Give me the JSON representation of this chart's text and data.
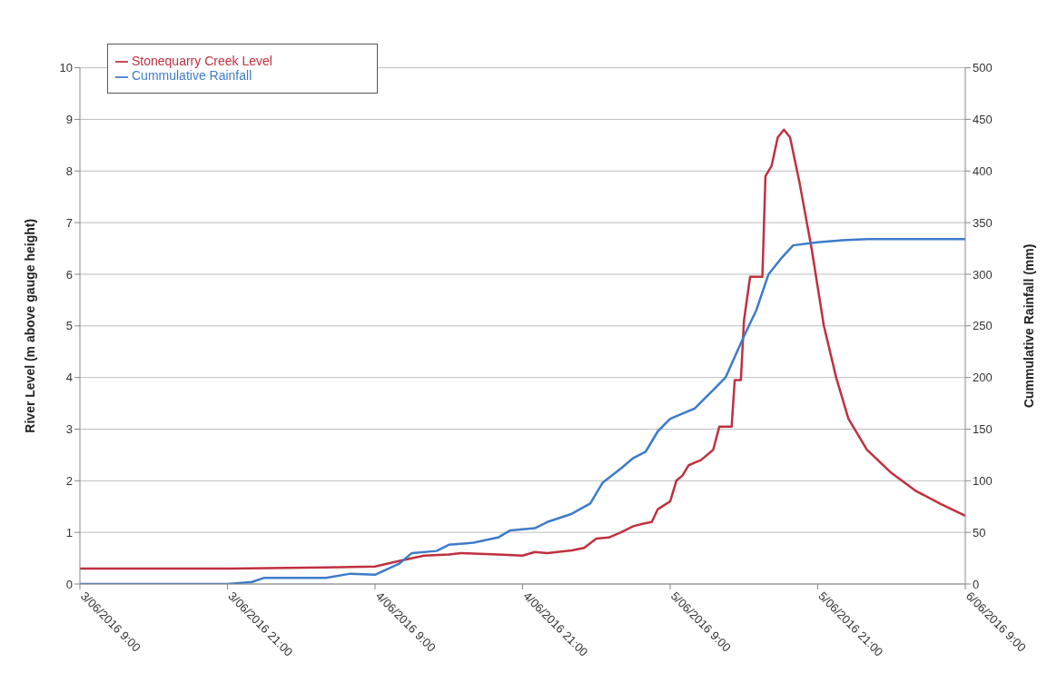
{
  "chart_data": {
    "type": "line",
    "ylabel": "River Level (m above gauge height)",
    "y2label": "Cummulative Rainfall (mm)",
    "xlim": [
      "2016-06-03T09:00",
      "2016-06-06T09:00"
    ],
    "xticks": [
      {
        "value": "2016-06-03T09:00",
        "label": "3/06/2016 9:00"
      },
      {
        "value": "2016-06-03T21:00",
        "label": "3/06/2016 21:00"
      },
      {
        "value": "2016-06-04T09:00",
        "label": "4/06/2016 9:00"
      },
      {
        "value": "2016-06-04T21:00",
        "label": "4/06/2016 21:00"
      },
      {
        "value": "2016-06-05T09:00",
        "label": "5/06/2016 9:00"
      },
      {
        "value": "2016-06-05T21:00",
        "label": "5/06/2016 21:00"
      },
      {
        "value": "2016-06-06T09:00",
        "label": "6/06/2016 9:00"
      }
    ],
    "ylim": [
      0,
      10
    ],
    "yticks": [
      0,
      1,
      2,
      3,
      4,
      5,
      6,
      7,
      8,
      9,
      10
    ],
    "y2lim": [
      0,
      500
    ],
    "y2ticks": [
      0,
      50,
      100,
      150,
      200,
      250,
      300,
      350,
      400,
      450,
      500
    ],
    "grid": "y",
    "legend": "top left",
    "marker": "none",
    "line_style": "solid",
    "series": [
      {
        "name": "Stonequarry Creek Level",
        "color": "#c0303f",
        "x": [
          "2016-06-03T09:00",
          "2016-06-03T21:00",
          "2016-06-04T05:00",
          "2016-06-04T09:00",
          "2016-06-04T11:00",
          "2016-06-04T13:00",
          "2016-06-04T15:00",
          "2016-06-04T16:00",
          "2016-06-04T19:00",
          "2016-06-04T21:00",
          "2016-06-04T22:00",
          "2016-06-04T23:00",
          "2016-06-05T01:00",
          "2016-06-05T02:00",
          "2016-06-05T03:00",
          "2016-06-05T04:00",
          "2016-06-05T05:00",
          "2016-06-05T06:00",
          "2016-06-05T07:00",
          "2016-06-05T07:30",
          "2016-06-05T08:00",
          "2016-06-05T09:00",
          "2016-06-05T09:30",
          "2016-06-05T10:00",
          "2016-06-05T10:30",
          "2016-06-05T11:30",
          "2016-06-05T12:30",
          "2016-06-05T13:00",
          "2016-06-05T14:00",
          "2016-06-05T14:15",
          "2016-06-05T14:45",
          "2016-06-05T15:00",
          "2016-06-05T15:30",
          "2016-06-05T16:30",
          "2016-06-05T16:45",
          "2016-06-05T17:15",
          "2016-06-05T17:45",
          "2016-06-05T18:15",
          "2016-06-05T18:45",
          "2016-06-05T19:30",
          "2016-06-05T20:30",
          "2016-06-05T21:30",
          "2016-06-05T22:30",
          "2016-06-05T23:30",
          "2016-06-06T01:00",
          "2016-06-06T03:00",
          "2016-06-06T05:00",
          "2016-06-06T07:00",
          "2016-06-06T09:00"
        ],
        "values": [
          0.3,
          0.3,
          0.32,
          0.34,
          0.45,
          0.55,
          0.57,
          0.6,
          0.57,
          0.55,
          0.62,
          0.6,
          0.65,
          0.7,
          0.88,
          0.9,
          1.0,
          1.12,
          1.18,
          1.2,
          1.45,
          1.6,
          2.0,
          2.1,
          2.3,
          2.4,
          2.6,
          3.05,
          3.05,
          3.95,
          3.95,
          5.1,
          5.95,
          5.95,
          7.9,
          8.1,
          8.65,
          8.8,
          8.65,
          7.8,
          6.5,
          5.0,
          4.0,
          3.2,
          2.6,
          2.15,
          1.8,
          1.55,
          1.32
        ]
      },
      {
        "name": "Cummulative Rainfall",
        "color": "#3d7cc9",
        "axis": "y2",
        "x": [
          "2016-06-03T09:00",
          "2016-06-03T21:00",
          "2016-06-03T23:00",
          "2016-06-04T00:00",
          "2016-06-04T05:00",
          "2016-06-04T07:00",
          "2016-06-04T09:00",
          "2016-06-04T11:00",
          "2016-06-04T12:00",
          "2016-06-04T14:00",
          "2016-06-04T15:00",
          "2016-06-04T17:00",
          "2016-06-04T19:00",
          "2016-06-04T20:00",
          "2016-06-04T22:00",
          "2016-06-04T23:00",
          "2016-06-05T01:00",
          "2016-06-05T02:30",
          "2016-06-05T03:30",
          "2016-06-05T05:00",
          "2016-06-05T06:00",
          "2016-06-05T07:00",
          "2016-06-05T08:00",
          "2016-06-05T09:00",
          "2016-06-05T11:00",
          "2016-06-05T12:30",
          "2016-06-05T13:30",
          "2016-06-05T15:00",
          "2016-06-05T16:00",
          "2016-06-05T17:00",
          "2016-06-05T18:00",
          "2016-06-05T19:00",
          "2016-06-05T21:00",
          "2016-06-05T23:00",
          "2016-06-06T01:00",
          "2016-06-06T09:00"
        ],
        "values": [
          0,
          0,
          2,
          6,
          6,
          10,
          9,
          20,
          30,
          32,
          38,
          40,
          45,
          52,
          54,
          60,
          68,
          78,
          98,
          112,
          122,
          128,
          148,
          160,
          170,
          188,
          200,
          240,
          265,
          300,
          315,
          328,
          331,
          333,
          334,
          334
        ]
      }
    ]
  }
}
